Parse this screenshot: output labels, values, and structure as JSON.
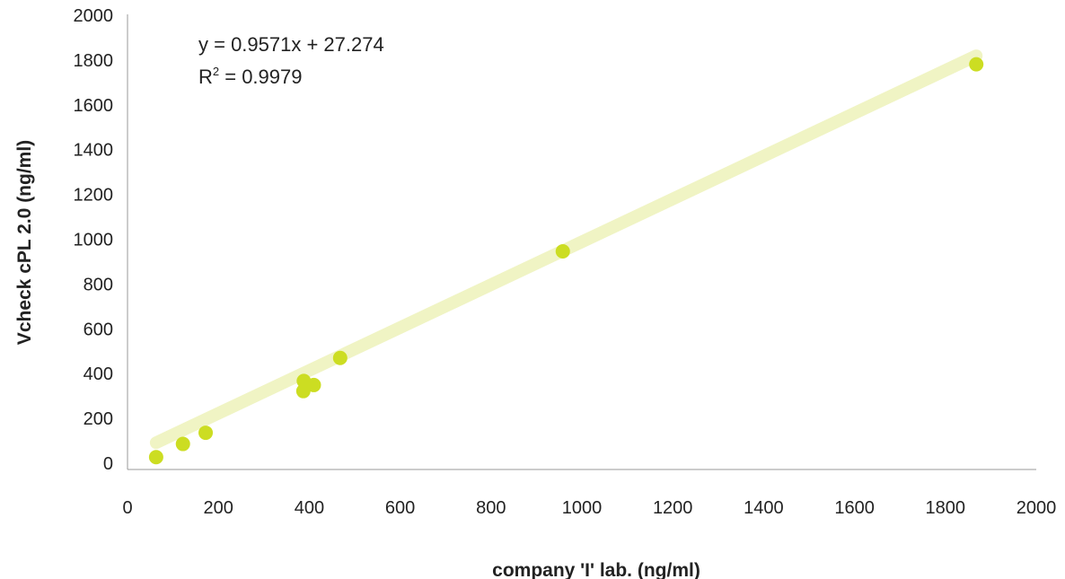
{
  "chart_data": {
    "type": "scatter",
    "title": "",
    "xlabel": "company 'I' lab. (ng/ml)",
    "ylabel": "Vcheck cPL 2.0 (ng/ml)",
    "xlim": [
      0,
      2000
    ],
    "ylim": [
      0,
      2000
    ],
    "x_ticks": [
      "0",
      "200",
      "400",
      "600",
      "800",
      "1000",
      "1200",
      "1400",
      "1600",
      "1800",
      "2000"
    ],
    "y_ticks": [
      "0",
      "200",
      "400",
      "600",
      "800",
      "1000",
      "1200",
      "1400",
      "1600",
      "1800",
      "2000"
    ],
    "grid": false,
    "legend": "none",
    "series": [
      {
        "points": [
          {
            "x": 63,
            "y": 23
          },
          {
            "x": 122,
            "y": 82
          },
          {
            "x": 172,
            "y": 132
          },
          {
            "x": 387,
            "y": 318
          },
          {
            "x": 388,
            "y": 363
          },
          {
            "x": 410,
            "y": 345
          },
          {
            "x": 468,
            "y": 466
          },
          {
            "x": 958,
            "y": 942
          },
          {
            "x": 1868,
            "y": 1777
          }
        ]
      }
    ],
    "trendline": {
      "slope": 0.9571,
      "intercept": 27.274,
      "equation": "y = 0.9571x + 27.274",
      "r2_prefix": "R",
      "r2_sup": "2",
      "r2_value": " = 0.9979"
    },
    "colors": {
      "points": "#ccdd22",
      "trendline": "#f0f4c4",
      "axis": "#999999"
    }
  }
}
